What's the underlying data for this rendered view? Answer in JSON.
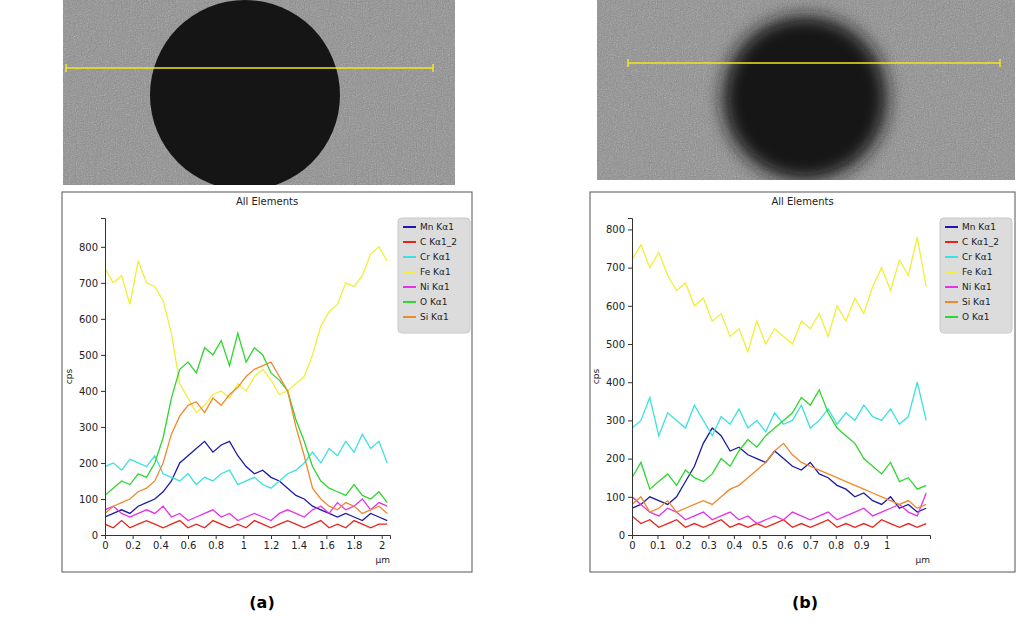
{
  "chart_data": [
    {
      "type": "line",
      "label": "(a)",
      "title": "All Elements",
      "x_label": "µm",
      "y_label": "cps",
      "grid": false,
      "legend": "right",
      "xlim": [
        0,
        2.06
      ],
      "ylim": [
        0,
        880
      ],
      "xticks": [
        0,
        0.2,
        0.4,
        0.6,
        0.8,
        1,
        1.2,
        1.4,
        1.6,
        1.8,
        2
      ],
      "yticks": [
        0,
        100,
        200,
        300,
        400,
        500,
        600,
        700,
        800
      ],
      "x": [
        0,
        0.06,
        0.12,
        0.18,
        0.24,
        0.3,
        0.36,
        0.42,
        0.48,
        0.54,
        0.6,
        0.66,
        0.72,
        0.78,
        0.84,
        0.9,
        0.96,
        1.02,
        1.08,
        1.14,
        1.2,
        1.26,
        1.32,
        1.38,
        1.44,
        1.5,
        1.56,
        1.62,
        1.68,
        1.74,
        1.8,
        1.86,
        1.92,
        1.98,
        2.04
      ],
      "series": [
        {
          "name": "Mn Kα1",
          "color": "#1a1aa6",
          "values": [
            50,
            60,
            70,
            60,
            80,
            90,
            100,
            120,
            150,
            200,
            220,
            240,
            260,
            230,
            250,
            260,
            220,
            190,
            170,
            180,
            160,
            150,
            130,
            110,
            100,
            80,
            70,
            60,
            50,
            60,
            50,
            40,
            60,
            50,
            40
          ]
        },
        {
          "name": "C Kα1_2",
          "color": "#e8231c",
          "values": [
            30,
            20,
            40,
            20,
            30,
            40,
            30,
            20,
            30,
            40,
            20,
            30,
            20,
            40,
            30,
            20,
            30,
            20,
            40,
            30,
            20,
            30,
            40,
            30,
            20,
            30,
            40,
            20,
            30,
            20,
            40,
            30,
            20,
            30,
            30
          ]
        },
        {
          "name": "Cr Kα1",
          "color": "#3ee0e0",
          "values": [
            190,
            200,
            180,
            210,
            200,
            190,
            220,
            170,
            160,
            150,
            170,
            140,
            160,
            150,
            170,
            180,
            140,
            150,
            160,
            140,
            130,
            150,
            170,
            180,
            200,
            230,
            200,
            240,
            220,
            260,
            230,
            280,
            240,
            260,
            200
          ]
        },
        {
          "name": "Fe Kα1",
          "color": "#f2ee3a",
          "values": [
            740,
            700,
            720,
            640,
            760,
            700,
            690,
            650,
            560,
            420,
            380,
            340,
            360,
            390,
            400,
            380,
            420,
            400,
            440,
            460,
            430,
            390,
            400,
            420,
            440,
            500,
            580,
            620,
            640,
            700,
            690,
            720,
            780,
            800,
            760
          ]
        },
        {
          "name": "Ni Kα1",
          "color": "#e632e6",
          "values": [
            70,
            80,
            60,
            50,
            60,
            70,
            60,
            80,
            50,
            60,
            40,
            50,
            60,
            70,
            50,
            60,
            40,
            50,
            60,
            50,
            40,
            60,
            70,
            60,
            50,
            70,
            80,
            60,
            90,
            70,
            80,
            100,
            70,
            90,
            80
          ]
        },
        {
          "name": "O Kα1",
          "color": "#2ed62e",
          "values": [
            110,
            130,
            150,
            140,
            170,
            160,
            200,
            270,
            380,
            460,
            480,
            450,
            520,
            500,
            540,
            470,
            560,
            480,
            520,
            500,
            450,
            430,
            400,
            320,
            260,
            190,
            150,
            130,
            120,
            110,
            140,
            110,
            100,
            120,
            90
          ]
        },
        {
          "name": "Si Kα1",
          "color": "#f0892c",
          "values": [
            60,
            80,
            90,
            100,
            120,
            130,
            150,
            200,
            280,
            330,
            360,
            370,
            340,
            380,
            360,
            390,
            410,
            440,
            460,
            470,
            480,
            440,
            400,
            300,
            220,
            130,
            100,
            80,
            70,
            90,
            80,
            60,
            70,
            80,
            60
          ]
        }
      ]
    },
    {
      "type": "line",
      "label": "(b)",
      "title": "All Elements",
      "x_label": "µm",
      "y_label": "cps",
      "grid": false,
      "legend": "right",
      "xlim": [
        0,
        1.17
      ],
      "ylim": [
        0,
        830
      ],
      "xticks": [
        0,
        0.1,
        0.2,
        0.3,
        0.4,
        0.5,
        0.6,
        0.7,
        0.8,
        0.9,
        1
      ],
      "yticks": [
        0,
        100,
        200,
        300,
        400,
        500,
        600,
        700,
        800
      ],
      "x": [
        0,
        0.035,
        0.07,
        0.105,
        0.14,
        0.175,
        0.21,
        0.245,
        0.28,
        0.315,
        0.35,
        0.385,
        0.42,
        0.455,
        0.49,
        0.525,
        0.56,
        0.595,
        0.63,
        0.665,
        0.7,
        0.735,
        0.77,
        0.805,
        0.84,
        0.875,
        0.91,
        0.945,
        0.98,
        1.015,
        1.05,
        1.085,
        1.12,
        1.155
      ],
      "series": [
        {
          "name": "Mn Kα1",
          "color": "#1a1aa6",
          "values": [
            70,
            80,
            100,
            90,
            80,
            100,
            140,
            180,
            240,
            280,
            260,
            220,
            230,
            210,
            200,
            190,
            220,
            200,
            180,
            170,
            190,
            160,
            150,
            130,
            120,
            100,
            110,
            90,
            80,
            100,
            70,
            80,
            60,
            70
          ]
        },
        {
          "name": "C Kα1_2",
          "color": "#e8231c",
          "values": [
            50,
            30,
            40,
            20,
            30,
            40,
            20,
            30,
            20,
            30,
            40,
            20,
            30,
            20,
            30,
            20,
            30,
            40,
            20,
            30,
            20,
            30,
            40,
            20,
            30,
            20,
            30,
            20,
            40,
            30,
            20,
            30,
            20,
            30
          ]
        },
        {
          "name": "Cr Kα1",
          "color": "#3ee0e0",
          "values": [
            280,
            300,
            360,
            260,
            320,
            300,
            280,
            340,
            300,
            260,
            310,
            290,
            330,
            280,
            300,
            270,
            320,
            290,
            300,
            340,
            280,
            300,
            330,
            290,
            320,
            300,
            340,
            310,
            300,
            330,
            290,
            310,
            400,
            300
          ]
        },
        {
          "name": "Fe Kα1",
          "color": "#f2ee3a",
          "values": [
            720,
            760,
            700,
            740,
            680,
            640,
            660,
            600,
            620,
            560,
            580,
            520,
            540,
            480,
            560,
            500,
            540,
            520,
            500,
            560,
            540,
            580,
            520,
            600,
            560,
            620,
            580,
            650,
            700,
            640,
            720,
            680,
            780,
            650
          ]
        },
        {
          "name": "Ni Kα1",
          "color": "#e632e6",
          "values": [
            100,
            80,
            60,
            50,
            70,
            60,
            40,
            50,
            60,
            40,
            50,
            60,
            40,
            50,
            30,
            40,
            50,
            40,
            60,
            50,
            40,
            50,
            60,
            40,
            50,
            60,
            70,
            50,
            60,
            70,
            80,
            60,
            50,
            110
          ]
        },
        {
          "name": "Si Kα1",
          "color": "#f0892c",
          "values": [
            80,
            100,
            60,
            70,
            90,
            60,
            70,
            80,
            90,
            80,
            100,
            120,
            130,
            150,
            170,
            190,
            220,
            240,
            210,
            190,
            180,
            170,
            160,
            150,
            140,
            130,
            120,
            110,
            100,
            90,
            80,
            90,
            70,
            80
          ]
        },
        {
          "name": "O Kα1",
          "color": "#2ed62e",
          "values": [
            150,
            190,
            120,
            140,
            160,
            130,
            170,
            150,
            140,
            160,
            200,
            180,
            220,
            250,
            230,
            260,
            280,
            300,
            320,
            360,
            340,
            380,
            320,
            280,
            260,
            240,
            200,
            180,
            160,
            190,
            140,
            150,
            120,
            130
          ]
        }
      ]
    }
  ]
}
